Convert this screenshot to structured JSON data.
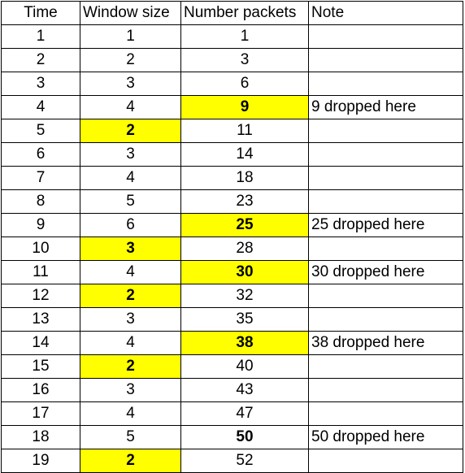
{
  "headers": [
    "Time",
    "Window size",
    "Number packets",
    "Note"
  ],
  "rows": [
    {
      "time": "1",
      "window": "1",
      "packets": "1",
      "note": "",
      "window_hl": false,
      "packets_hl": false
    },
    {
      "time": "2",
      "window": "2",
      "packets": "3",
      "note": "",
      "window_hl": false,
      "packets_hl": false
    },
    {
      "time": "3",
      "window": "3",
      "packets": "6",
      "note": "",
      "window_hl": false,
      "packets_hl": false
    },
    {
      "time": "4",
      "window": "4",
      "packets": "9",
      "note": "9 dropped here",
      "window_hl": false,
      "packets_hl": true
    },
    {
      "time": "5",
      "window": "2",
      "packets": "11",
      "note": "",
      "window_hl": true,
      "packets_hl": false
    },
    {
      "time": "6",
      "window": "3",
      "packets": "14",
      "note": "",
      "window_hl": false,
      "packets_hl": false
    },
    {
      "time": "7",
      "window": "4",
      "packets": "18",
      "note": "",
      "window_hl": false,
      "packets_hl": false
    },
    {
      "time": "8",
      "window": "5",
      "packets": "23",
      "note": "",
      "window_hl": false,
      "packets_hl": false
    },
    {
      "time": "9",
      "window": "6",
      "packets": "25",
      "note": "25 dropped here",
      "window_hl": false,
      "packets_hl": true
    },
    {
      "time": "10",
      "window": "3",
      "packets": "28",
      "note": "",
      "window_hl": true,
      "packets_hl": false
    },
    {
      "time": "11",
      "window": "4",
      "packets": "30",
      "note": "30 dropped here",
      "window_hl": false,
      "packets_hl": true
    },
    {
      "time": "12",
      "window": "2",
      "packets": "32",
      "note": "",
      "window_hl": true,
      "packets_hl": false
    },
    {
      "time": "13",
      "window": "3",
      "packets": "35",
      "note": "",
      "window_hl": false,
      "packets_hl": false
    },
    {
      "time": "14",
      "window": "4",
      "packets": "38",
      "note": "38 dropped here",
      "window_hl": false,
      "packets_hl": true
    },
    {
      "time": "15",
      "window": "2",
      "packets": "40",
      "note": "",
      "window_hl": true,
      "packets_hl": false
    },
    {
      "time": "16",
      "window": "3",
      "packets": "43",
      "note": "",
      "window_hl": false,
      "packets_hl": false
    },
    {
      "time": "17",
      "window": "4",
      "packets": "47",
      "note": "",
      "window_hl": false,
      "packets_hl": false
    },
    {
      "time": "18",
      "window": "5",
      "packets": "50",
      "note": "50 dropped here",
      "window_hl": false,
      "packets_hl": false,
      "packets_bold": true
    },
    {
      "time": "19",
      "window": "2",
      "packets": "52",
      "note": "",
      "window_hl": true,
      "packets_hl": false
    }
  ],
  "colors": {
    "highlight": "#ffff00",
    "border": "#000000",
    "text": "#000000",
    "background": "#ffffff"
  }
}
